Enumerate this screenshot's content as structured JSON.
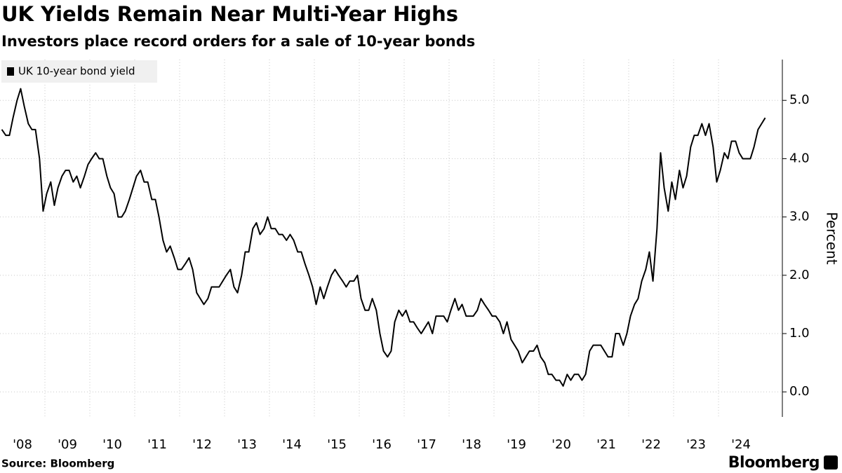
{
  "chart_data": {
    "type": "line",
    "title": "UK Yields Remain Near Multi-Year Highs",
    "subtitle": "Investors place record orders for a sale of 10-year bonds",
    "y_axis_label": "Percent",
    "source": "Source: Bloomberg",
    "brand": "Bloomberg",
    "legend_position": "top-left",
    "grid": true,
    "xlim": [
      2008,
      2025.05
    ],
    "ylim": [
      -0.43,
      5.7
    ],
    "xticks": [
      {
        "value": 2008.5,
        "label": "'08"
      },
      {
        "value": 2009.5,
        "label": "'09"
      },
      {
        "value": 2010.5,
        "label": "'10"
      },
      {
        "value": 2011.5,
        "label": "'11"
      },
      {
        "value": 2012.5,
        "label": "'12"
      },
      {
        "value": 2013.5,
        "label": "'13"
      },
      {
        "value": 2014.5,
        "label": "'14"
      },
      {
        "value": 2015.5,
        "label": "'15"
      },
      {
        "value": 2016.5,
        "label": "'16"
      },
      {
        "value": 2017.5,
        "label": "'17"
      },
      {
        "value": 2018.5,
        "label": "'18"
      },
      {
        "value": 2019.5,
        "label": "'19"
      },
      {
        "value": 2020.5,
        "label": "'20"
      },
      {
        "value": 2021.5,
        "label": "'21"
      },
      {
        "value": 2022.5,
        "label": "'22"
      },
      {
        "value": 2023.5,
        "label": "'23"
      },
      {
        "value": 2024.5,
        "label": "'24"
      }
    ],
    "yticks": [
      {
        "value": 0,
        "label": "0.0"
      },
      {
        "value": 1,
        "label": "1.0"
      },
      {
        "value": 2,
        "label": "2.0"
      },
      {
        "value": 3,
        "label": "3.0"
      },
      {
        "value": 4,
        "label": "4.0"
      },
      {
        "value": 5,
        "label": "5.0"
      }
    ],
    "x": [
      2008.04,
      2008.13,
      2008.21,
      2008.29,
      2008.38,
      2008.46,
      2008.54,
      2008.63,
      2008.71,
      2008.79,
      2008.88,
      2008.96,
      2009.04,
      2009.13,
      2009.21,
      2009.29,
      2009.38,
      2009.46,
      2009.54,
      2009.63,
      2009.71,
      2009.79,
      2009.88,
      2009.96,
      2010.04,
      2010.13,
      2010.21,
      2010.29,
      2010.38,
      2010.46,
      2010.54,
      2010.63,
      2010.71,
      2010.79,
      2010.88,
      2010.96,
      2011.04,
      2011.13,
      2011.21,
      2011.29,
      2011.38,
      2011.46,
      2011.54,
      2011.63,
      2011.71,
      2011.79,
      2011.88,
      2011.96,
      2012.04,
      2012.13,
      2012.21,
      2012.29,
      2012.38,
      2012.46,
      2012.54,
      2012.63,
      2012.71,
      2012.79,
      2012.88,
      2012.96,
      2013.04,
      2013.13,
      2013.21,
      2013.29,
      2013.38,
      2013.46,
      2013.54,
      2013.63,
      2013.71,
      2013.79,
      2013.88,
      2013.96,
      2014.04,
      2014.13,
      2014.21,
      2014.29,
      2014.38,
      2014.46,
      2014.54,
      2014.63,
      2014.71,
      2014.79,
      2014.88,
      2014.96,
      2015.04,
      2015.13,
      2015.21,
      2015.29,
      2015.38,
      2015.46,
      2015.54,
      2015.63,
      2015.71,
      2015.79,
      2015.88,
      2015.96,
      2016.04,
      2016.13,
      2016.21,
      2016.29,
      2016.38,
      2016.46,
      2016.54,
      2016.63,
      2016.71,
      2016.79,
      2016.88,
      2016.96,
      2017.04,
      2017.13,
      2017.21,
      2017.29,
      2017.38,
      2017.46,
      2017.54,
      2017.63,
      2017.71,
      2017.79,
      2017.88,
      2017.96,
      2018.04,
      2018.13,
      2018.21,
      2018.29,
      2018.38,
      2018.46,
      2018.54,
      2018.63,
      2018.71,
      2018.79,
      2018.88,
      2018.96,
      2019.04,
      2019.13,
      2019.21,
      2019.29,
      2019.38,
      2019.46,
      2019.54,
      2019.63,
      2019.71,
      2019.79,
      2019.88,
      2019.96,
      2020.04,
      2020.13,
      2020.21,
      2020.29,
      2020.38,
      2020.46,
      2020.54,
      2020.63,
      2020.71,
      2020.79,
      2020.88,
      2020.96,
      2021.04,
      2021.13,
      2021.21,
      2021.29,
      2021.38,
      2021.46,
      2021.54,
      2021.63,
      2021.71,
      2021.79,
      2021.88,
      2021.96,
      2022.04,
      2022.13,
      2022.21,
      2022.29,
      2022.38,
      2022.46,
      2022.54,
      2022.63,
      2022.71,
      2022.79,
      2022.88,
      2022.96,
      2023.04,
      2023.13,
      2023.21,
      2023.29,
      2023.38,
      2023.46,
      2023.54,
      2023.63,
      2023.71,
      2023.79,
      2023.88,
      2023.96,
      2024.04,
      2024.13,
      2024.21,
      2024.29,
      2024.38,
      2024.46,
      2024.54,
      2024.63,
      2024.71,
      2024.79,
      2024.88,
      2024.96,
      2025.04
    ],
    "series": [
      {
        "name": "UK 10-year bond yield",
        "color": "#000000",
        "values": [
          4.5,
          4.4,
          4.4,
          4.7,
          5.0,
          5.2,
          4.9,
          4.6,
          4.5,
          4.5,
          4.0,
          3.1,
          3.4,
          3.6,
          3.2,
          3.5,
          3.7,
          3.8,
          3.8,
          3.6,
          3.7,
          3.5,
          3.7,
          3.9,
          4.0,
          4.1,
          4.0,
          4.0,
          3.7,
          3.5,
          3.4,
          3.0,
          3.0,
          3.1,
          3.3,
          3.5,
          3.7,
          3.8,
          3.6,
          3.6,
          3.3,
          3.3,
          3.0,
          2.6,
          2.4,
          2.5,
          2.3,
          2.1,
          2.1,
          2.2,
          2.3,
          2.1,
          1.7,
          1.6,
          1.5,
          1.6,
          1.8,
          1.8,
          1.8,
          1.9,
          2.0,
          2.1,
          1.8,
          1.7,
          2.0,
          2.4,
          2.4,
          2.8,
          2.9,
          2.7,
          2.8,
          3.0,
          2.8,
          2.8,
          2.7,
          2.7,
          2.6,
          2.7,
          2.6,
          2.4,
          2.4,
          2.2,
          2.0,
          1.8,
          1.5,
          1.8,
          1.6,
          1.8,
          2.0,
          2.1,
          2.0,
          1.9,
          1.8,
          1.9,
          1.9,
          2.0,
          1.6,
          1.4,
          1.4,
          1.6,
          1.4,
          1.0,
          0.7,
          0.6,
          0.7,
          1.2,
          1.4,
          1.3,
          1.4,
          1.2,
          1.2,
          1.1,
          1.0,
          1.1,
          1.2,
          1.0,
          1.3,
          1.3,
          1.3,
          1.2,
          1.4,
          1.6,
          1.4,
          1.5,
          1.3,
          1.3,
          1.3,
          1.4,
          1.6,
          1.5,
          1.4,
          1.3,
          1.3,
          1.2,
          1.0,
          1.2,
          0.9,
          0.8,
          0.7,
          0.5,
          0.6,
          0.7,
          0.7,
          0.8,
          0.6,
          0.5,
          0.3,
          0.3,
          0.2,
          0.2,
          0.1,
          0.3,
          0.2,
          0.3,
          0.3,
          0.2,
          0.3,
          0.7,
          0.8,
          0.8,
          0.8,
          0.7,
          0.6,
          0.6,
          1.0,
          1.0,
          0.8,
          1.0,
          1.3,
          1.5,
          1.6,
          1.9,
          2.1,
          2.4,
          1.9,
          2.8,
          4.1,
          3.5,
          3.1,
          3.6,
          3.3,
          3.8,
          3.5,
          3.7,
          4.2,
          4.4,
          4.4,
          4.6,
          4.4,
          4.6,
          4.2,
          3.6,
          3.8,
          4.1,
          4.0,
          4.3,
          4.3,
          4.1,
          4.0,
          4.0,
          4.0,
          4.2,
          4.5,
          4.6,
          4.7
        ]
      }
    ]
  }
}
